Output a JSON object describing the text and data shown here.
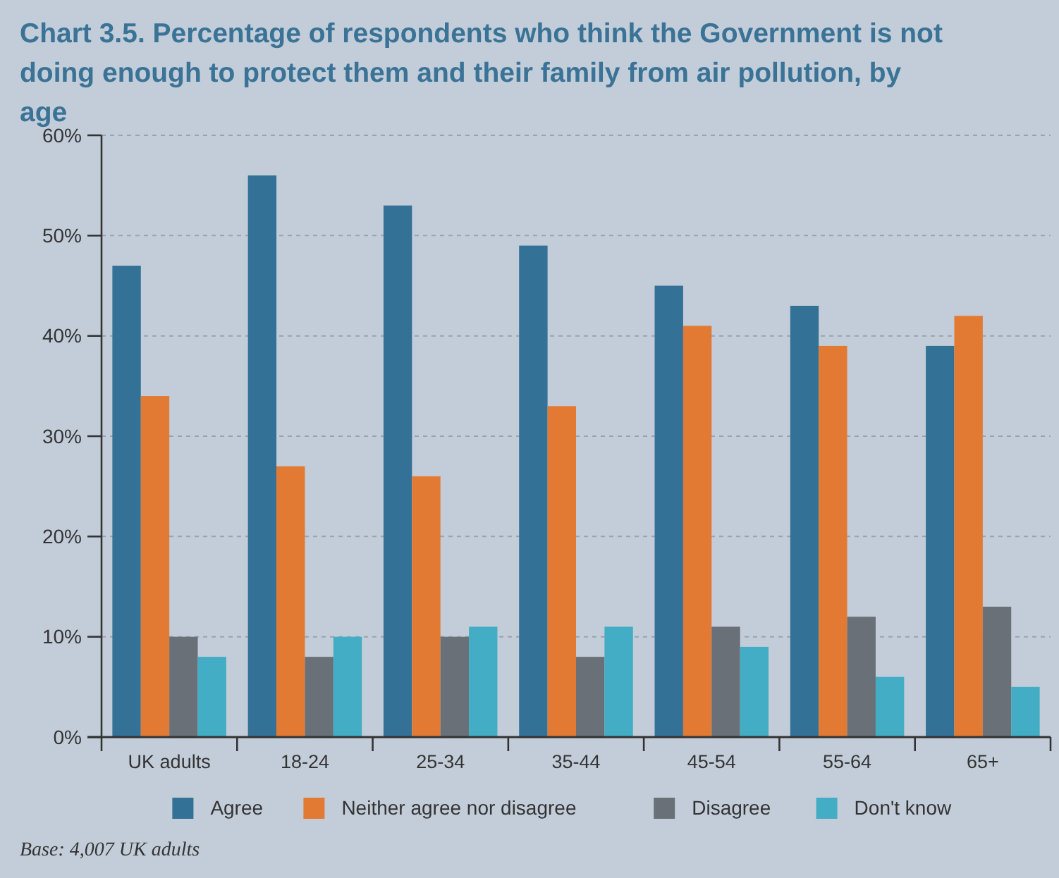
{
  "chart_data": {
    "type": "bar",
    "title": "Chart 3.5. Percentage of respondents who think the Government is not doing enough to protect them and their family from air pollution, by age",
    "categories": [
      "UK adults",
      "18-24",
      "25-34",
      "35-44",
      "45-54",
      "55-64",
      "65+"
    ],
    "series": [
      {
        "name": "Agree",
        "color": "#337196",
        "values": [
          47,
          56,
          53,
          49,
          45,
          43,
          39
        ]
      },
      {
        "name": "Neither agree nor disagree",
        "color": "#e37a34",
        "values": [
          34,
          27,
          26,
          33,
          41,
          39,
          42
        ]
      },
      {
        "name": "Disagree",
        "color": "#697077",
        "values": [
          10,
          8,
          10,
          8,
          11,
          12,
          13
        ]
      },
      {
        "name": "Don't know",
        "color": "#42adc4",
        "values": [
          8,
          10,
          11,
          11,
          9,
          6,
          5
        ]
      }
    ],
    "ylim": [
      0,
      60
    ],
    "yticks": [
      {
        "value": 0,
        "label": "0%"
      },
      {
        "value": 10,
        "label": "10%"
      },
      {
        "value": 20,
        "label": "20%"
      },
      {
        "value": 30,
        "label": "30%"
      },
      {
        "value": 40,
        "label": "40%"
      },
      {
        "value": 50,
        "label": "50%"
      },
      {
        "value": 60,
        "label": "60%"
      }
    ],
    "grid": "y",
    "legend": "bottom",
    "annotations": [
      "Base: 4,007 UK adults"
    ]
  }
}
